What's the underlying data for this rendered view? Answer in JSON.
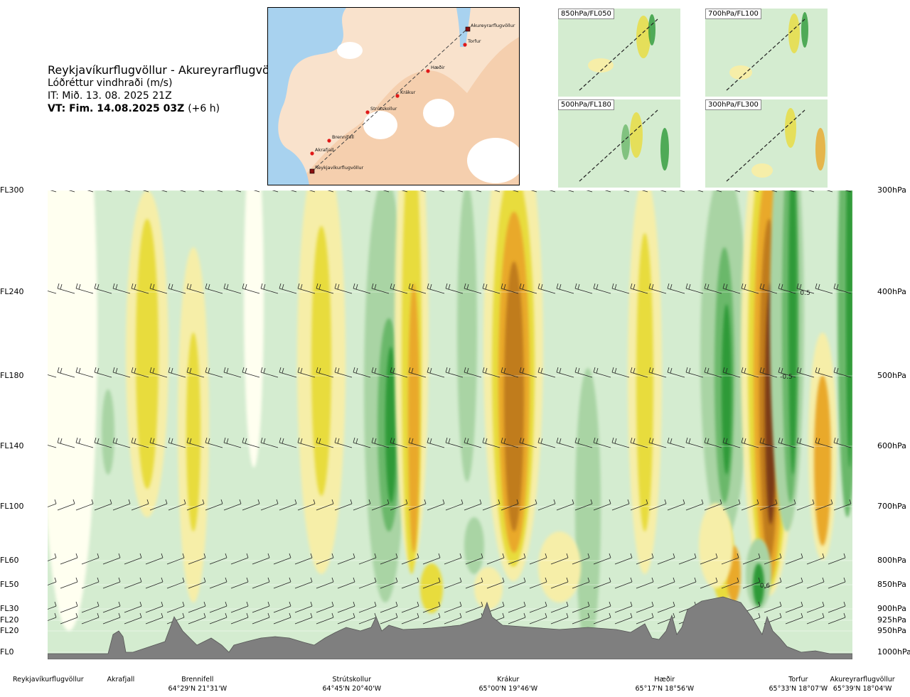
{
  "title": {
    "route": "Reykjavíkurflugvöllur - Akureyrarflugvöllur",
    "product": "Lóðréttur vindhraði (m/s)",
    "issue_time": "IT: Mið. 13. 08. 2025 21Z",
    "valid_time": "VT: Fim. 14.08.2025 03Z",
    "lead": "(+6 h)"
  },
  "route_map": {
    "waypoints": [
      "Reykjavíkurflugvöllur",
      "Akrafjall",
      "Brennifell",
      "Strútskollur",
      "Krákur",
      "Hæðir",
      "Torfur",
      "Akureyrarflugvöllur"
    ]
  },
  "mini_maps": [
    "850hPa/FL050",
    "700hPa/FL100",
    "500hPa/FL180",
    "300hPa/FL300"
  ],
  "levels": [
    {
      "fl": "FL300",
      "hpa": "300hPa"
    },
    {
      "fl": "FL240",
      "hpa": "400hPa"
    },
    {
      "fl": "FL180",
      "hpa": "500hPa"
    },
    {
      "fl": "FL140",
      "hpa": "600hPa"
    },
    {
      "fl": "FL100",
      "hpa": "700hPa"
    },
    {
      "fl": "FL60",
      "hpa": "800hPa"
    },
    {
      "fl": "FL50",
      "hpa": "850hPa"
    },
    {
      "fl": "FL30",
      "hpa": "900hPa"
    },
    {
      "fl": "FL20",
      "hpa": "925hPa"
    },
    {
      "fl": "FL20",
      "hpa": "950hPa"
    },
    {
      "fl": "FL0",
      "hpa": "1000hPa"
    }
  ],
  "stations": [
    {
      "name": "Reykjavíkurflugvöllur",
      "coord": ""
    },
    {
      "name": "Akrafjall",
      "coord": ""
    },
    {
      "name": "Brennifell",
      "coord": "64°29'N 21°31'W"
    },
    {
      "name": "Strútskollur",
      "coord": "64°45'N 20°40'W"
    },
    {
      "name": "Krákur",
      "coord": "65°00'N 19°46'W"
    },
    {
      "name": "Hæðir",
      "coord": "65°17'N 18°56'W"
    },
    {
      "name": "Torfur",
      "coord": "65°33'N 18°07'W"
    },
    {
      "name": "Akureyrarflugvöllur",
      "coord": "65°39'N 18°04'W"
    }
  ],
  "chart_data": {
    "type": "heatmap",
    "title": "Lóðréttur vindhraði (m/s)",
    "xlabel": "",
    "ylabel": "",
    "y_levels_hpa": [
      300,
      400,
      500,
      600,
      700,
      800,
      850,
      900,
      925,
      950,
      1000
    ],
    "contour_labels": [
      {
        "text": "0.5",
        "x_frac": 0.935,
        "hpa": 400
      },
      {
        "text": "-0.5",
        "x_frac": 0.91,
        "hpa": 500
      },
      {
        "text": "0.6",
        "x_frac": 0.885,
        "hpa": 850
      }
    ],
    "colors": {
      "strong_down": "#7a3b14",
      "down_3": "#c07c1e",
      "down_2": "#e9a92a",
      "down_1": "#e8dc3c",
      "down_0": "#f6eea8",
      "neutral": "#fffff0",
      "up_0": "#d4ecd0",
      "up_1": "#a9d4a4",
      "up_2": "#6bb86a",
      "up_3": "#2d9a38",
      "terrain": "#7f7f7f"
    }
  }
}
